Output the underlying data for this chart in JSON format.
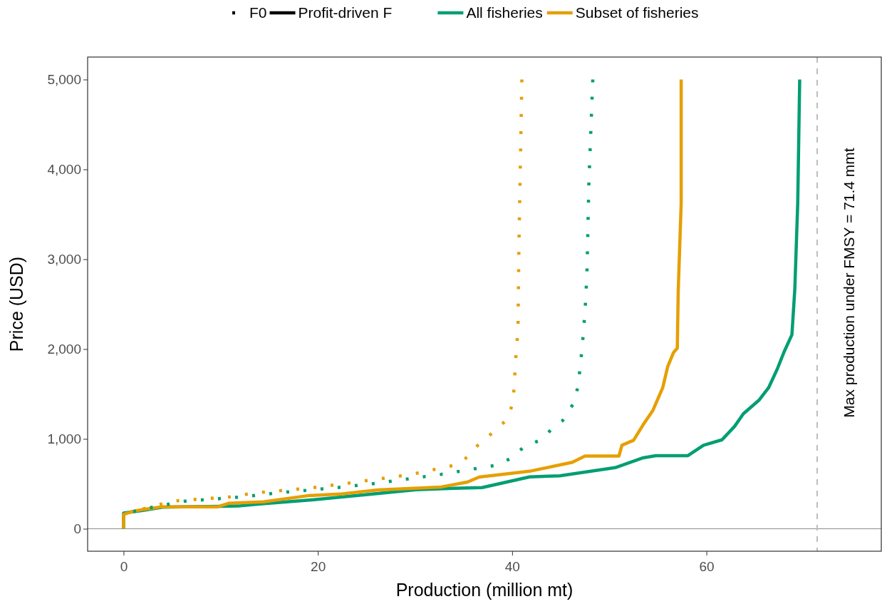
{
  "chart_data": {
    "type": "line",
    "xlabel": "Production (million mt)",
    "ylabel": "Price (USD)",
    "xlim": [
      -3.7,
      78
    ],
    "xticks": [
      0,
      20,
      40,
      60
    ],
    "ylim": [
      -250,
      5250
    ],
    "yticks": [
      0,
      {
        "value": 1000,
        "label": "1,000"
      },
      {
        "value": 2000,
        "label": "2,000"
      },
      {
        "value": 3000,
        "label": "3,000"
      },
      {
        "value": 4000,
        "label": "4,000"
      },
      {
        "value": 5000,
        "label": "5,000"
      }
    ],
    "grid": false,
    "legend": "top",
    "marker": "none",
    "annotations": [
      "F0",
      "Profit-driven F"
    ],
    "ref_lines": [
      {
        "axis": "y",
        "value": 0,
        "color": "#8c8c8c",
        "line_style": "solid"
      },
      {
        "axis": "x",
        "value": 71.4,
        "label": "Max production under FMSY = 71.4 mmt",
        "color": "#bdbdbd",
        "line_style": "dashed"
      }
    ],
    "series": [
      {
        "color": "#009e73",
        "line_style": "dotted",
        "x": [
          1,
          2,
          4,
          6.3,
          12.2,
          15.9,
          21.8,
          25.9,
          31.6,
          32.7,
          38.4,
          40.1,
          41.2,
          43.2,
          44.1,
          45.2,
          46.4,
          46.8,
          47.2,
          47.5,
          47.7,
          47.9,
          48.3
        ],
        "values": [
          190,
          220,
          260,
          307,
          354,
          400,
          456,
          504,
          590,
          606,
          708,
          795,
          913,
          1000,
          1118,
          1204,
          1409,
          1598,
          2007,
          2416,
          2833,
          3856,
          5000
        ]
      },
      {
        "name": "All fisheries",
        "color": "#009e73",
        "line_style": "solid",
        "x": [
          0,
          0,
          1,
          2,
          4,
          10,
          11.8,
          14,
          19.6,
          24.9,
          30.1,
          34,
          36.9,
          41.8,
          44.9,
          50.6,
          53.5,
          54.8,
          58.1,
          59.7,
          61.6,
          62.9,
          63.8,
          65.4,
          66.4,
          67.3,
          68,
          68.8,
          69.1,
          69.4,
          69.6
        ],
        "values": [
          0,
          175,
          190,
          205,
          240,
          250,
          253,
          275,
          324,
          379,
          435,
          450,
          458,
          577,
          590,
          680,
          790,
          814,
          814,
          930,
          990,
          1140,
          1280,
          1430,
          1570,
          1780,
          1970,
          2160,
          2670,
          3630,
          5000
        ]
      },
      {
        "color": "#e69f00",
        "line_style": "dotted",
        "x": [
          2,
          5,
          10.9,
          13.6,
          19.4,
          22.9,
          28.6,
          29.3,
          34.1,
          34.2,
          35.5,
          36.3,
          38.5,
          39.5,
          40.1,
          40.4,
          40.6,
          40.7,
          41
        ],
        "values": [
          220,
          307,
          354,
          400,
          456,
          504,
          590,
          598,
          708,
          724,
          803,
          913,
          1118,
          1220,
          1409,
          1944,
          2212,
          3172,
          5000
        ]
      },
      {
        "name": "Subset of fisheries",
        "color": "#e69f00",
        "line_style": "solid",
        "x": [
          0,
          0,
          1,
          2,
          4,
          9.7,
          10.8,
          14.4,
          19.1,
          22.3,
          26.2,
          32.7,
          35.4,
          36.6,
          41.8,
          46.2,
          47.5,
          51,
          51.3,
          52.5,
          53.5,
          54.5,
          55.5,
          56,
          56.6,
          57,
          57.1,
          57.4,
          57.4
        ],
        "values": [
          0,
          160,
          195,
          215,
          245,
          245,
          283,
          300,
          370,
          386,
          433,
          465,
          520,
          575,
          640,
          740,
          810,
          810,
          930,
          985,
          1160,
          1320,
          1570,
          1800,
          1960,
          2010,
          2660,
          3620,
          5000
        ]
      }
    ]
  }
}
